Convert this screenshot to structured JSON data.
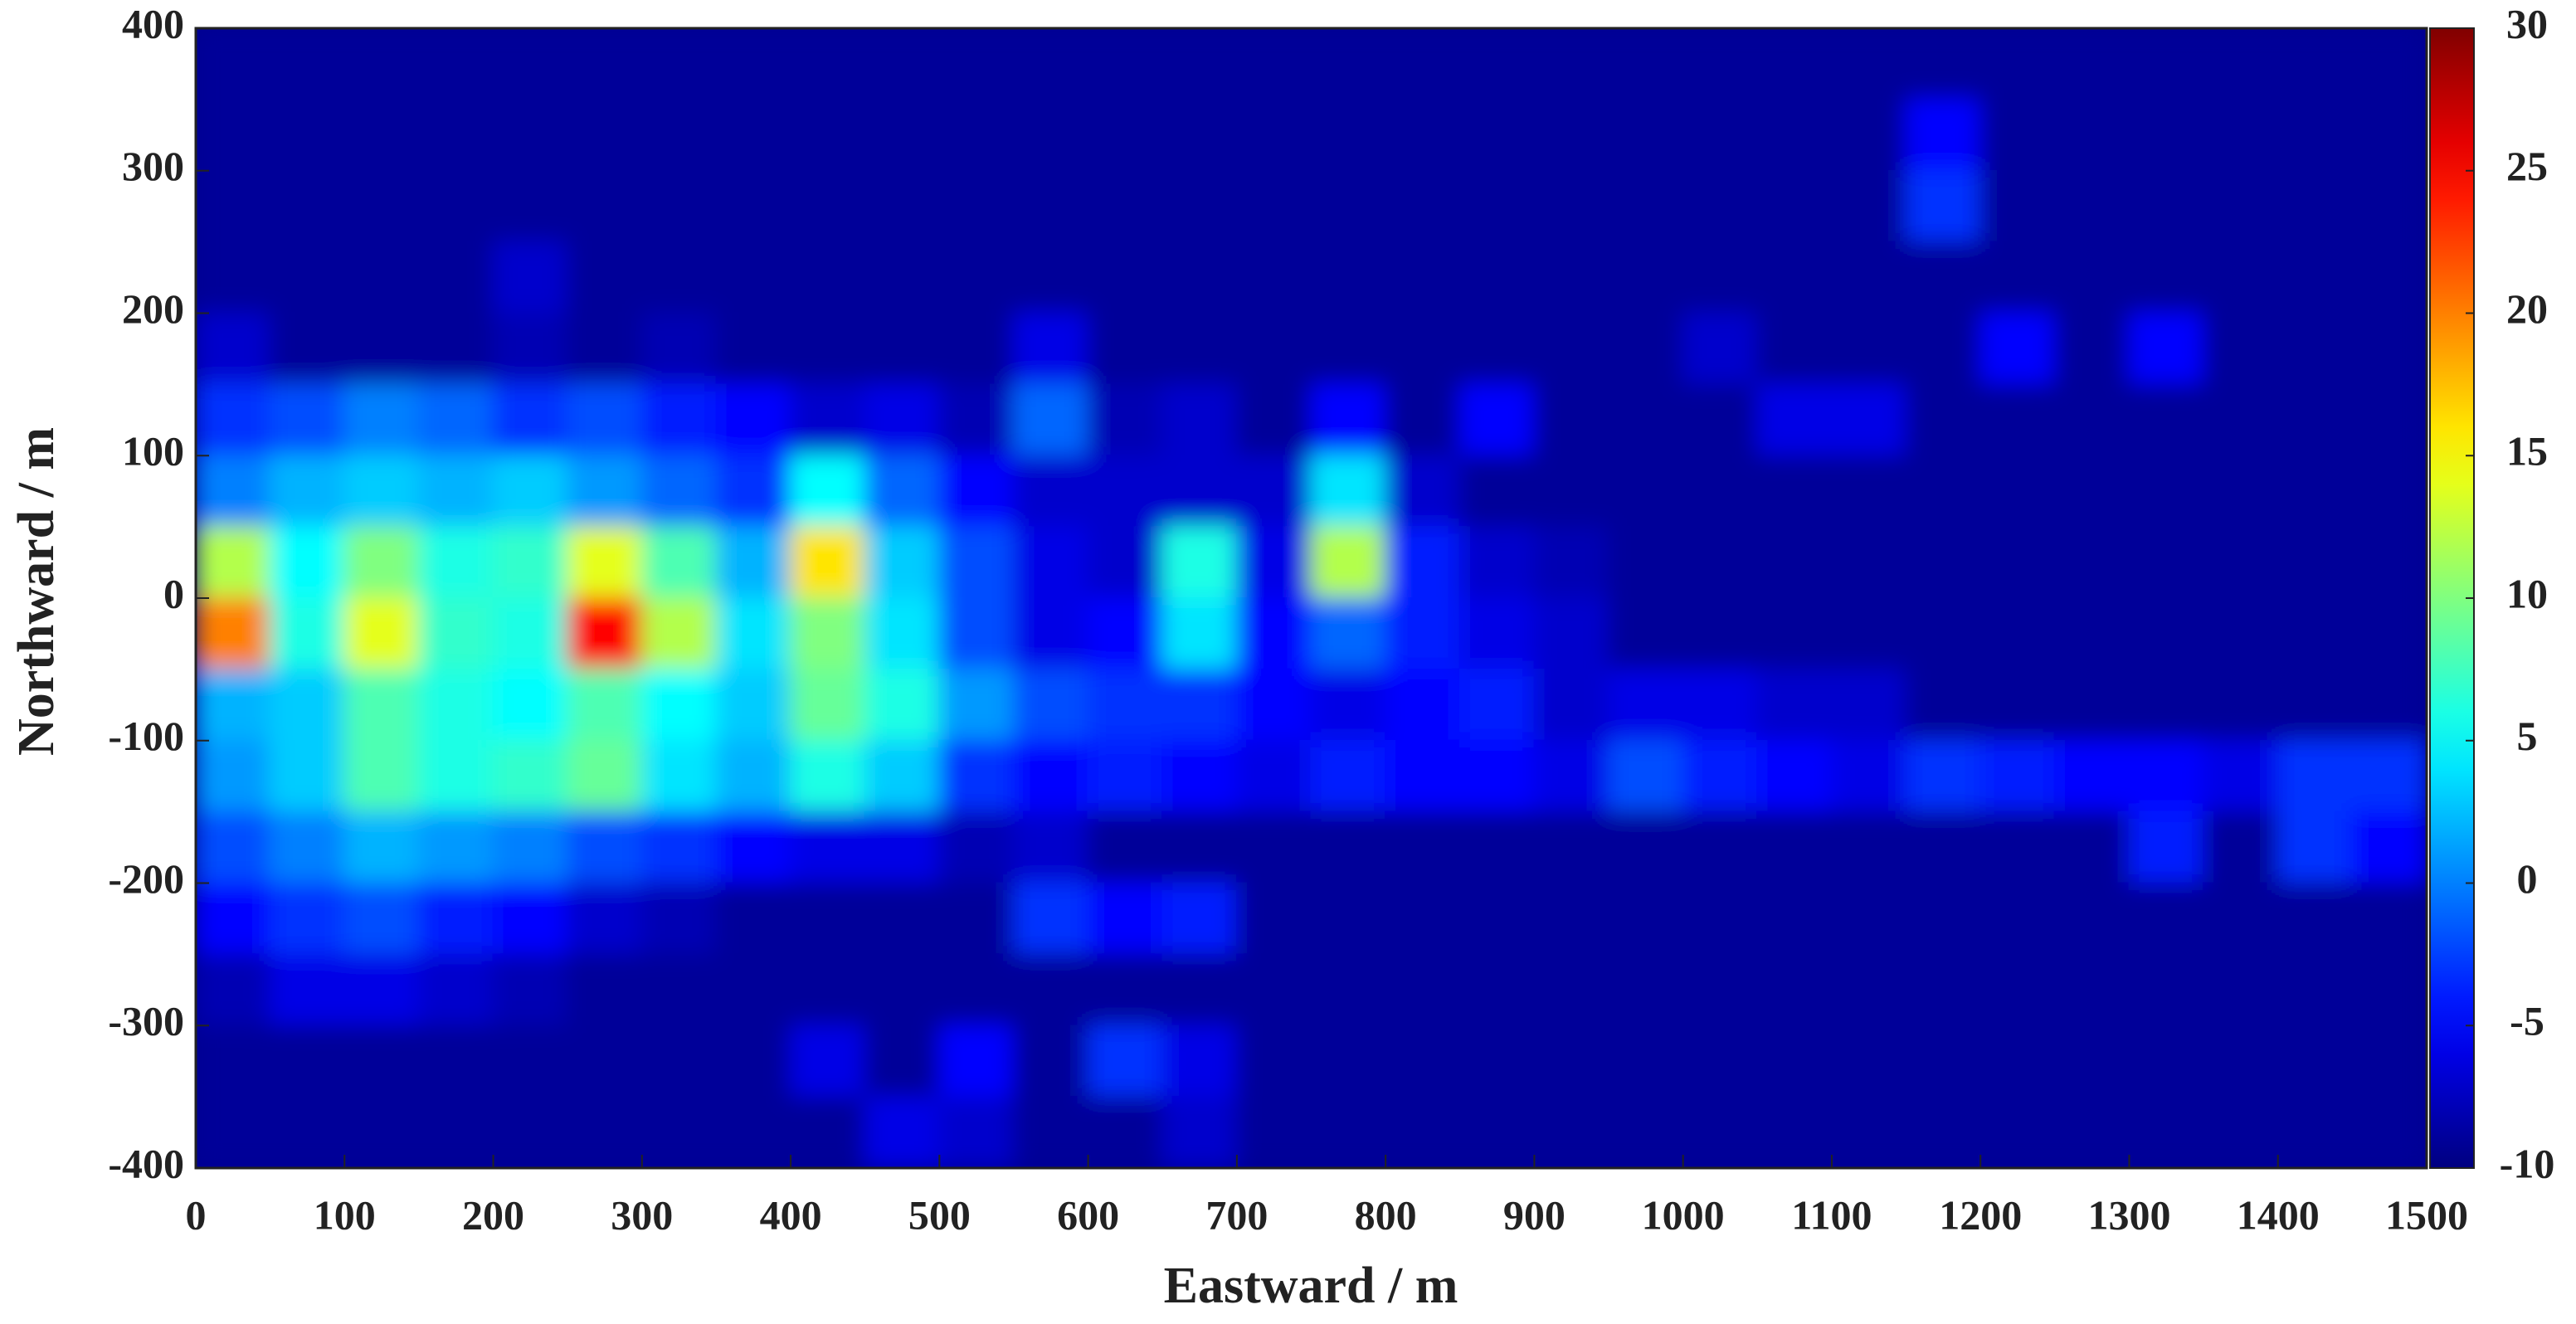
{
  "chart_data": {
    "type": "heatmap",
    "x_label": "Eastward / m",
    "y_label": "Northward / m",
    "xlim": [
      0,
      1500
    ],
    "ylim": [
      -400,
      400
    ],
    "xticks": [
      0,
      100,
      200,
      300,
      400,
      500,
      600,
      700,
      800,
      900,
      1000,
      1100,
      1200,
      1300,
      1400,
      1500
    ],
    "yticks": [
      -400,
      -300,
      -200,
      -100,
      0,
      100,
      200,
      300,
      400
    ],
    "zlim": [
      -10,
      30
    ],
    "zticks": [
      -10,
      -5,
      0,
      5,
      10,
      15,
      20,
      25,
      30
    ],
    "colormap": "jet",
    "x": [
      25,
      75,
      125,
      175,
      225,
      275,
      325,
      375,
      425,
      475,
      525,
      575,
      625,
      675,
      725,
      775,
      825,
      875,
      925,
      975,
      1025,
      1075,
      1125,
      1175,
      1225,
      1275,
      1325,
      1375,
      1425,
      1475
    ],
    "y": [
      375,
      325,
      275,
      225,
      175,
      125,
      75,
      25,
      -25,
      -75,
      -125,
      -175,
      -225,
      -275,
      -325,
      -375
    ],
    "z": [
      [
        -9,
        -9,
        -9,
        -9,
        -9,
        -9,
        -9,
        -9,
        -9,
        -9,
        -9,
        -9,
        -9,
        -9,
        -9,
        -9,
        -9,
        -9,
        -9,
        -9,
        -9,
        -9,
        -9,
        -9,
        -9,
        -9,
        -9,
        -9,
        -9,
        -9
      ],
      [
        -9,
        -9,
        -9,
        -9,
        -9,
        -9,
        -9,
        -9,
        -9,
        -9,
        -9,
        -9,
        -9,
        -9,
        -9,
        -9,
        -9,
        -9,
        -9,
        -9,
        -9,
        -9,
        -9,
        -5,
        -9,
        -9,
        -9,
        -9,
        -9,
        -9
      ],
      [
        -9,
        -9,
        -9,
        -9,
        -9,
        -9,
        -9,
        -9,
        -9,
        -9,
        -9,
        -9,
        -9,
        -9,
        -9,
        -9,
        -9,
        -9,
        -9,
        -9,
        -9,
        -9,
        -9,
        -3,
        -9,
        -9,
        -9,
        -9,
        -9,
        -9
      ],
      [
        -9,
        -9,
        -9,
        -9,
        -7,
        -9,
        -9,
        -9,
        -9,
        -9,
        -9,
        -9,
        -9,
        -9,
        -9,
        -9,
        -9,
        -9,
        -9,
        -9,
        -9,
        -9,
        -9,
        -9,
        -9,
        -9,
        -9,
        -9,
        -9,
        -9
      ],
      [
        -7,
        -9,
        -9,
        -9,
        -8,
        -9,
        -8,
        -9,
        -9,
        -9,
        -9,
        -6,
        -9,
        -9,
        -9,
        -9,
        -9,
        -9,
        -9,
        -9,
        -7,
        -9,
        -9,
        -9,
        -5,
        -9,
        -5,
        -9,
        -9,
        -9
      ],
      [
        -3,
        -2,
        0,
        -1,
        -3,
        -2,
        -4,
        -5,
        -7,
        -6,
        -8,
        -1,
        -8,
        -7,
        -9,
        -5,
        -9,
        -5,
        -9,
        -9,
        -9,
        -6,
        -6,
        -9,
        -9,
        -9,
        -9,
        -9,
        -9,
        -9
      ],
      [
        0,
        2,
        3,
        2,
        3,
        1,
        -1,
        -3,
        5,
        -1,
        -5,
        -7,
        -7,
        -7,
        -7,
        4,
        -7,
        -9,
        -9,
        -9,
        -9,
        -9,
        -9,
        -9,
        -9,
        -9,
        -9,
        -9,
        -9,
        -9
      ],
      [
        12,
        5,
        10,
        6,
        7,
        14,
        8,
        2,
        16,
        3,
        -2,
        -6,
        -7,
        6,
        -6,
        12,
        -4,
        -7,
        -8,
        -9,
        -9,
        -9,
        -9,
        -9,
        -9,
        -9,
        -9,
        -9,
        -9,
        -9
      ],
      [
        20,
        6,
        14,
        7,
        6,
        25,
        12,
        4,
        10,
        4,
        -2,
        -6,
        -5,
        4,
        -5,
        -1,
        -4,
        -6,
        -7,
        -9,
        -9,
        -9,
        -9,
        -9,
        -9,
        -9,
        -9,
        -9,
        -9,
        -9
      ],
      [
        2,
        3,
        8,
        6,
        5,
        8,
        5,
        3,
        9,
        6,
        1,
        -2,
        -3,
        -3,
        -5,
        -6,
        -5,
        -4,
        -7,
        -6,
        -6,
        -7,
        -7,
        -9,
        -9,
        -9,
        -9,
        -9,
        -9,
        -9
      ],
      [
        1,
        3,
        8,
        6,
        7,
        9,
        4,
        2,
        6,
        3,
        -3,
        -5,
        -4,
        -5,
        -6,
        -4,
        -5,
        -5,
        -6,
        -2,
        -4,
        -5,
        -6,
        -3,
        -4,
        -5,
        -5,
        -6,
        -3,
        -3
      ],
      [
        -2,
        0,
        2,
        1,
        0,
        -2,
        -3,
        -5,
        -6,
        -6,
        -8,
        -7,
        -9,
        -9,
        -9,
        -9,
        -9,
        -9,
        -9,
        -9,
        -9,
        -9,
        -9,
        -9,
        -9,
        -9,
        -4,
        -9,
        -3,
        -5
      ],
      [
        -5,
        -3,
        -2,
        -4,
        -5,
        -7,
        -8,
        -9,
        -9,
        -9,
        -9,
        -3,
        -5,
        -4,
        -9,
        -9,
        -9,
        -9,
        -9,
        -9,
        -9,
        -9,
        -9,
        -9,
        -9,
        -9,
        -9,
        -9,
        -9,
        -9
      ],
      [
        -8,
        -6,
        -6,
        -7,
        -8,
        -9,
        -9,
        -9,
        -9,
        -9,
        -9,
        -9,
        -9,
        -9,
        -9,
        -9,
        -9,
        -9,
        -9,
        -9,
        -9,
        -9,
        -9,
        -9,
        -9,
        -9,
        -9,
        -9,
        -9,
        -9
      ],
      [
        -9,
        -9,
        -9,
        -9,
        -9,
        -9,
        -9,
        -9,
        -6,
        -9,
        -5,
        -9,
        -3,
        -6,
        -9,
        -9,
        -9,
        -9,
        -9,
        -9,
        -9,
        -9,
        -9,
        -9,
        -9,
        -9,
        -9,
        -9,
        -9,
        -9
      ],
      [
        -9,
        -9,
        -9,
        -9,
        -9,
        -9,
        -9,
        -9,
        -9,
        -6,
        -7,
        -9,
        -9,
        -7,
        -9,
        -9,
        -9,
        -9,
        -9,
        -9,
        -9,
        -9,
        -9,
        -9,
        -9,
        -9,
        -9,
        -9,
        -9,
        -9
      ]
    ]
  }
}
